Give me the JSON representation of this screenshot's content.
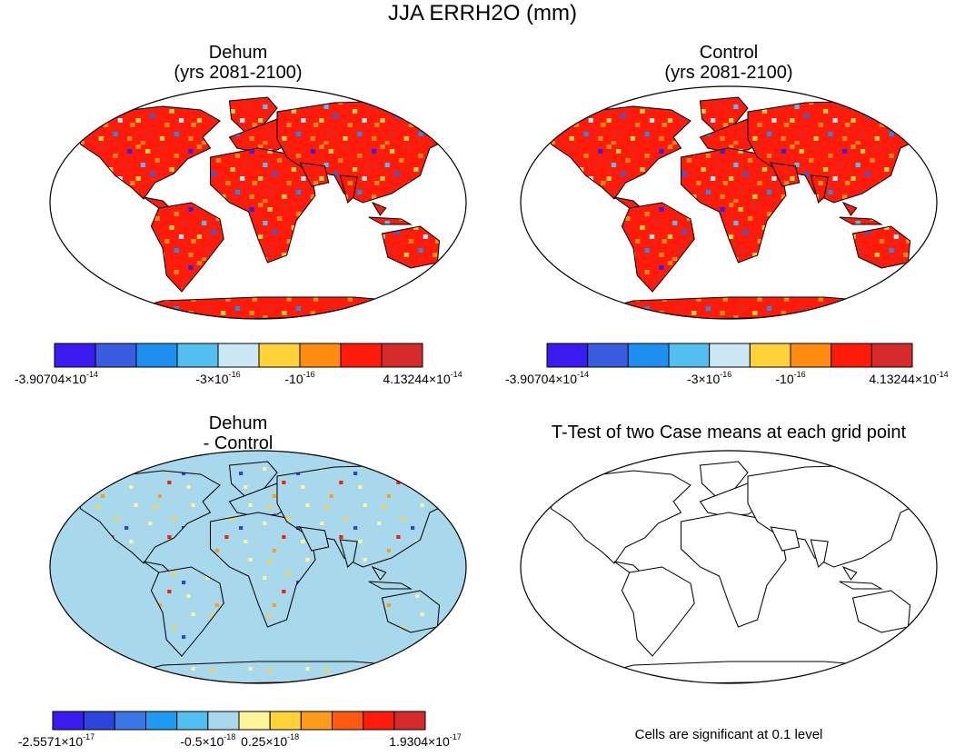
{
  "figure_title": "JJA ERRH2O (mm)",
  "chart_data": [
    {
      "type": "heatmap",
      "panel": "top-left",
      "title_line1": "Dehum",
      "title_line2": "(yrs 2081-2100)",
      "projection": "Robinson world map",
      "colorbar": {
        "colors": [
          "#3b1cf0",
          "#3a5ce0",
          "#1e8ef0",
          "#52bff0",
          "#cce8f5",
          "#ffd23a",
          "#ff8c10",
          "#ff1a0a",
          "#d42a2a"
        ],
        "tick_labels": [
          {
            "mantissa": "-3.90704×10",
            "exp": "-14",
            "bin_edge": 0
          },
          {
            "mantissa": "-3×10",
            "exp": "-16",
            "bin_edge": 4
          },
          {
            "mantissa": "-10",
            "exp": "-16",
            "bin_edge": 6
          },
          {
            "mantissa": "4.13244×10",
            "exp": "-14",
            "bin_edge": 9
          }
        ]
      },
      "dominant_color_index": 7,
      "accent_color_indices": [
        0,
        1,
        2,
        3,
        4,
        5,
        6,
        8
      ]
    },
    {
      "type": "heatmap",
      "panel": "top-right",
      "title_line1": "Control",
      "title_line2": "(yrs 2081-2100)",
      "projection": "Robinson world map",
      "colorbar": {
        "colors": [
          "#3b1cf0",
          "#3a5ce0",
          "#1e8ef0",
          "#52bff0",
          "#cce8f5",
          "#ffd23a",
          "#ff8c10",
          "#ff1a0a",
          "#d42a2a"
        ],
        "tick_labels": [
          {
            "mantissa": "-3.90704×10",
            "exp": "-14",
            "bin_edge": 0
          },
          {
            "mantissa": "-3×10",
            "exp": "-16",
            "bin_edge": 4
          },
          {
            "mantissa": "-10",
            "exp": "-16",
            "bin_edge": 6
          },
          {
            "mantissa": "4.13244×10",
            "exp": "-14",
            "bin_edge": 9
          }
        ]
      },
      "dominant_color_index": 7,
      "accent_color_indices": [
        0,
        1,
        2,
        3,
        4,
        5,
        6,
        8
      ]
    },
    {
      "type": "heatmap",
      "panel": "bottom-left",
      "title_line1": "Dehum",
      "title_line2": "- Control",
      "projection": "Robinson world map",
      "ocean_filled": true,
      "colorbar": {
        "colors": [
          "#3b1cf0",
          "#2b44dc",
          "#3b76e6",
          "#1e9af0",
          "#52bff0",
          "#a8d8ec",
          "#fff49a",
          "#ffd23a",
          "#ff9a1a",
          "#ff5a10",
          "#ff1a0a",
          "#d42a2a"
        ],
        "tick_labels": [
          {
            "mantissa": "-2.5571×10",
            "exp": "-17",
            "bin_edge": 0
          },
          {
            "mantissa": "-0.5×10",
            "exp": "-18",
            "bin_edge": 5
          },
          {
            "mantissa": "0.25×10",
            "exp": "-18",
            "bin_edge": 7
          },
          {
            "mantissa": "1.9304×10",
            "exp": "-17",
            "bin_edge": 12
          }
        ]
      },
      "dominant_color_index": 5,
      "accent_color_indices": [
        6,
        7,
        8,
        10,
        1
      ]
    },
    {
      "type": "heatmap",
      "panel": "bottom-right",
      "title_line1": "T-Test of two Case means at each grid point",
      "title_line2": "",
      "projection": "Robinson world map",
      "coastlines_only": true,
      "note": "Cells are significant at 0.1 level"
    }
  ]
}
